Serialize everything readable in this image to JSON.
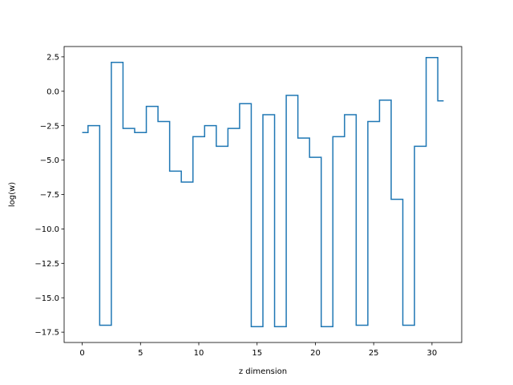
{
  "chart_data": {
    "type": "line",
    "drawstyle": "steps-mid",
    "title": "",
    "xlabel": "z dimension",
    "ylabel": "log(w)",
    "xlim": [
      -1.55,
      32.55
    ],
    "ylim": [
      -18.25,
      3.25
    ],
    "xticks": [
      0,
      5,
      10,
      15,
      20,
      25,
      30
    ],
    "xtick_labels": [
      "0",
      "5",
      "10",
      "15",
      "20",
      "25",
      "30"
    ],
    "yticks": [
      2.5,
      0.0,
      -2.5,
      -5.0,
      -7.5,
      -10.0,
      -12.5,
      -15.0,
      -17.5
    ],
    "ytick_labels": [
      "2.5",
      "0.0",
      "−2.5",
      "−5.0",
      "−7.5",
      "−10.0",
      "−12.5",
      "−15.0",
      "−17.5"
    ],
    "grid": false,
    "series": [
      {
        "color": "#1f77b4",
        "x": [
          0,
          1,
          2,
          3,
          4,
          5,
          6,
          7,
          8,
          9,
          10,
          11,
          12,
          13,
          14,
          15,
          16,
          17,
          18,
          19,
          20,
          21,
          22,
          23,
          24,
          25,
          26,
          27,
          28,
          29,
          30,
          31
        ],
        "values": [
          -3.0,
          -2.5,
          -17.0,
          2.1,
          -2.7,
          -3.0,
          -1.1,
          -2.2,
          -5.8,
          -6.6,
          -3.3,
          -2.5,
          -4.0,
          -2.7,
          -0.9,
          -17.1,
          -1.7,
          -17.1,
          -0.3,
          -3.4,
          -4.8,
          -17.1,
          -3.3,
          -1.7,
          -17.0,
          -2.2,
          -0.65,
          -7.85,
          -17.0,
          -4.0,
          2.45,
          -0.7
        ]
      }
    ]
  }
}
